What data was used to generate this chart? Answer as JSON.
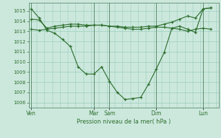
{
  "xlabel": "Pression niveau de la mer( hPa )",
  "bg_color": "#cce8dd",
  "grid_color": "#99ccbb",
  "line_color": "#2d6e2d",
  "vline_color": "#5a8a6a",
  "ylim": [
    1005.5,
    1015.8
  ],
  "yticks": [
    1006,
    1007,
    1008,
    1009,
    1010,
    1011,
    1012,
    1013,
    1014,
    1015
  ],
  "xtick_labels": [
    "Ven",
    "Mar",
    "Sam",
    "Dim",
    "Lun"
  ],
  "xtick_positions": [
    0,
    12,
    15,
    24,
    33
  ],
  "xlim": [
    -0.5,
    36
  ],
  "line1_x": [
    0,
    1.5,
    3,
    4.5,
    6,
    7.5,
    9,
    10.5,
    12,
    13.5,
    15,
    16.5,
    18,
    19.5,
    21,
    22.5,
    24,
    25.5,
    27,
    28.5,
    30,
    31.5,
    33,
    34.5
  ],
  "line1_y": [
    1015.2,
    1014.3,
    1013.1,
    1012.8,
    1012.2,
    1011.5,
    1009.5,
    1008.8,
    1008.8,
    1009.5,
    1008.1,
    1007.0,
    1006.3,
    1006.4,
    1006.5,
    1007.8,
    1009.3,
    1010.9,
    1013.3,
    1013.5,
    1013.2,
    1012.9,
    1015.2,
    1015.3
  ],
  "line2_x": [
    0,
    1.5,
    3,
    4.5,
    6,
    7.5,
    9,
    10.5,
    12,
    13.5,
    15,
    16.5,
    18,
    19.5,
    21,
    22.5,
    24,
    25.5,
    27,
    28.5,
    30,
    31.5,
    33,
    34.5
  ],
  "line2_y": [
    1014.2,
    1014.1,
    1013.3,
    1013.5,
    1013.6,
    1013.7,
    1013.7,
    1013.6,
    1013.6,
    1013.6,
    1013.5,
    1013.5,
    1013.4,
    1013.4,
    1013.4,
    1013.5,
    1013.5,
    1013.7,
    1013.9,
    1014.2,
    1014.5,
    1014.3,
    1015.2,
    1015.3
  ],
  "line3_x": [
    0,
    1.5,
    3,
    4.5,
    6,
    7.5,
    9,
    10.5,
    12,
    13.5,
    15,
    16.5,
    18,
    19.5,
    21,
    22.5,
    24,
    25.5,
    27,
    28.5,
    30,
    31.5,
    33,
    34.5
  ],
  "line3_y": [
    1013.2,
    1013.1,
    1013.2,
    1013.3,
    1013.4,
    1013.5,
    1013.5,
    1013.5,
    1013.6,
    1013.6,
    1013.5,
    1013.4,
    1013.3,
    1013.2,
    1013.2,
    1013.3,
    1013.4,
    1013.4,
    1013.3,
    1013.2,
    1013.0,
    1013.2,
    1013.3,
    1013.2
  ]
}
